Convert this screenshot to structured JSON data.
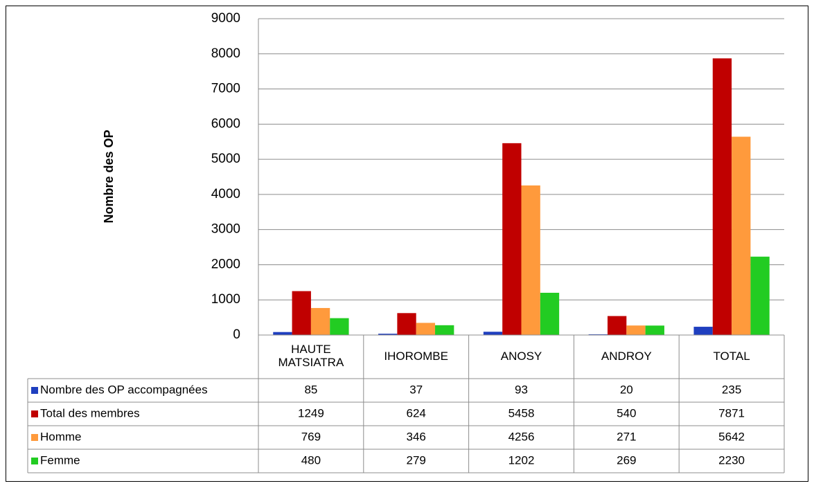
{
  "chart_data": {
    "type": "bar",
    "y_label": "Nombre des OP",
    "categories": [
      "HAUTE MATSIATRA",
      "IHOROMBE",
      "ANOSY",
      "ANDROY",
      "TOTAL"
    ],
    "series": [
      {
        "name": "Nombre des OP accompagnées",
        "color": "#1f3fbf",
        "values": [
          85,
          37,
          93,
          20,
          235
        ]
      },
      {
        "name": "Total des membres",
        "color": "#c00000",
        "values": [
          1249,
          624,
          5458,
          540,
          7871
        ]
      },
      {
        "name": "Homme",
        "color": "#ff9a3c",
        "values": [
          769,
          346,
          4256,
          271,
          5642
        ]
      },
      {
        "name": "Femme",
        "color": "#22cc22",
        "values": [
          480,
          279,
          1202,
          269,
          2230
        ]
      }
    ],
    "ylim": [
      0,
      9000
    ],
    "yticks": [
      0,
      1000,
      2000,
      3000,
      4000,
      5000,
      6000,
      7000,
      8000,
      9000
    ],
    "grid": true
  }
}
